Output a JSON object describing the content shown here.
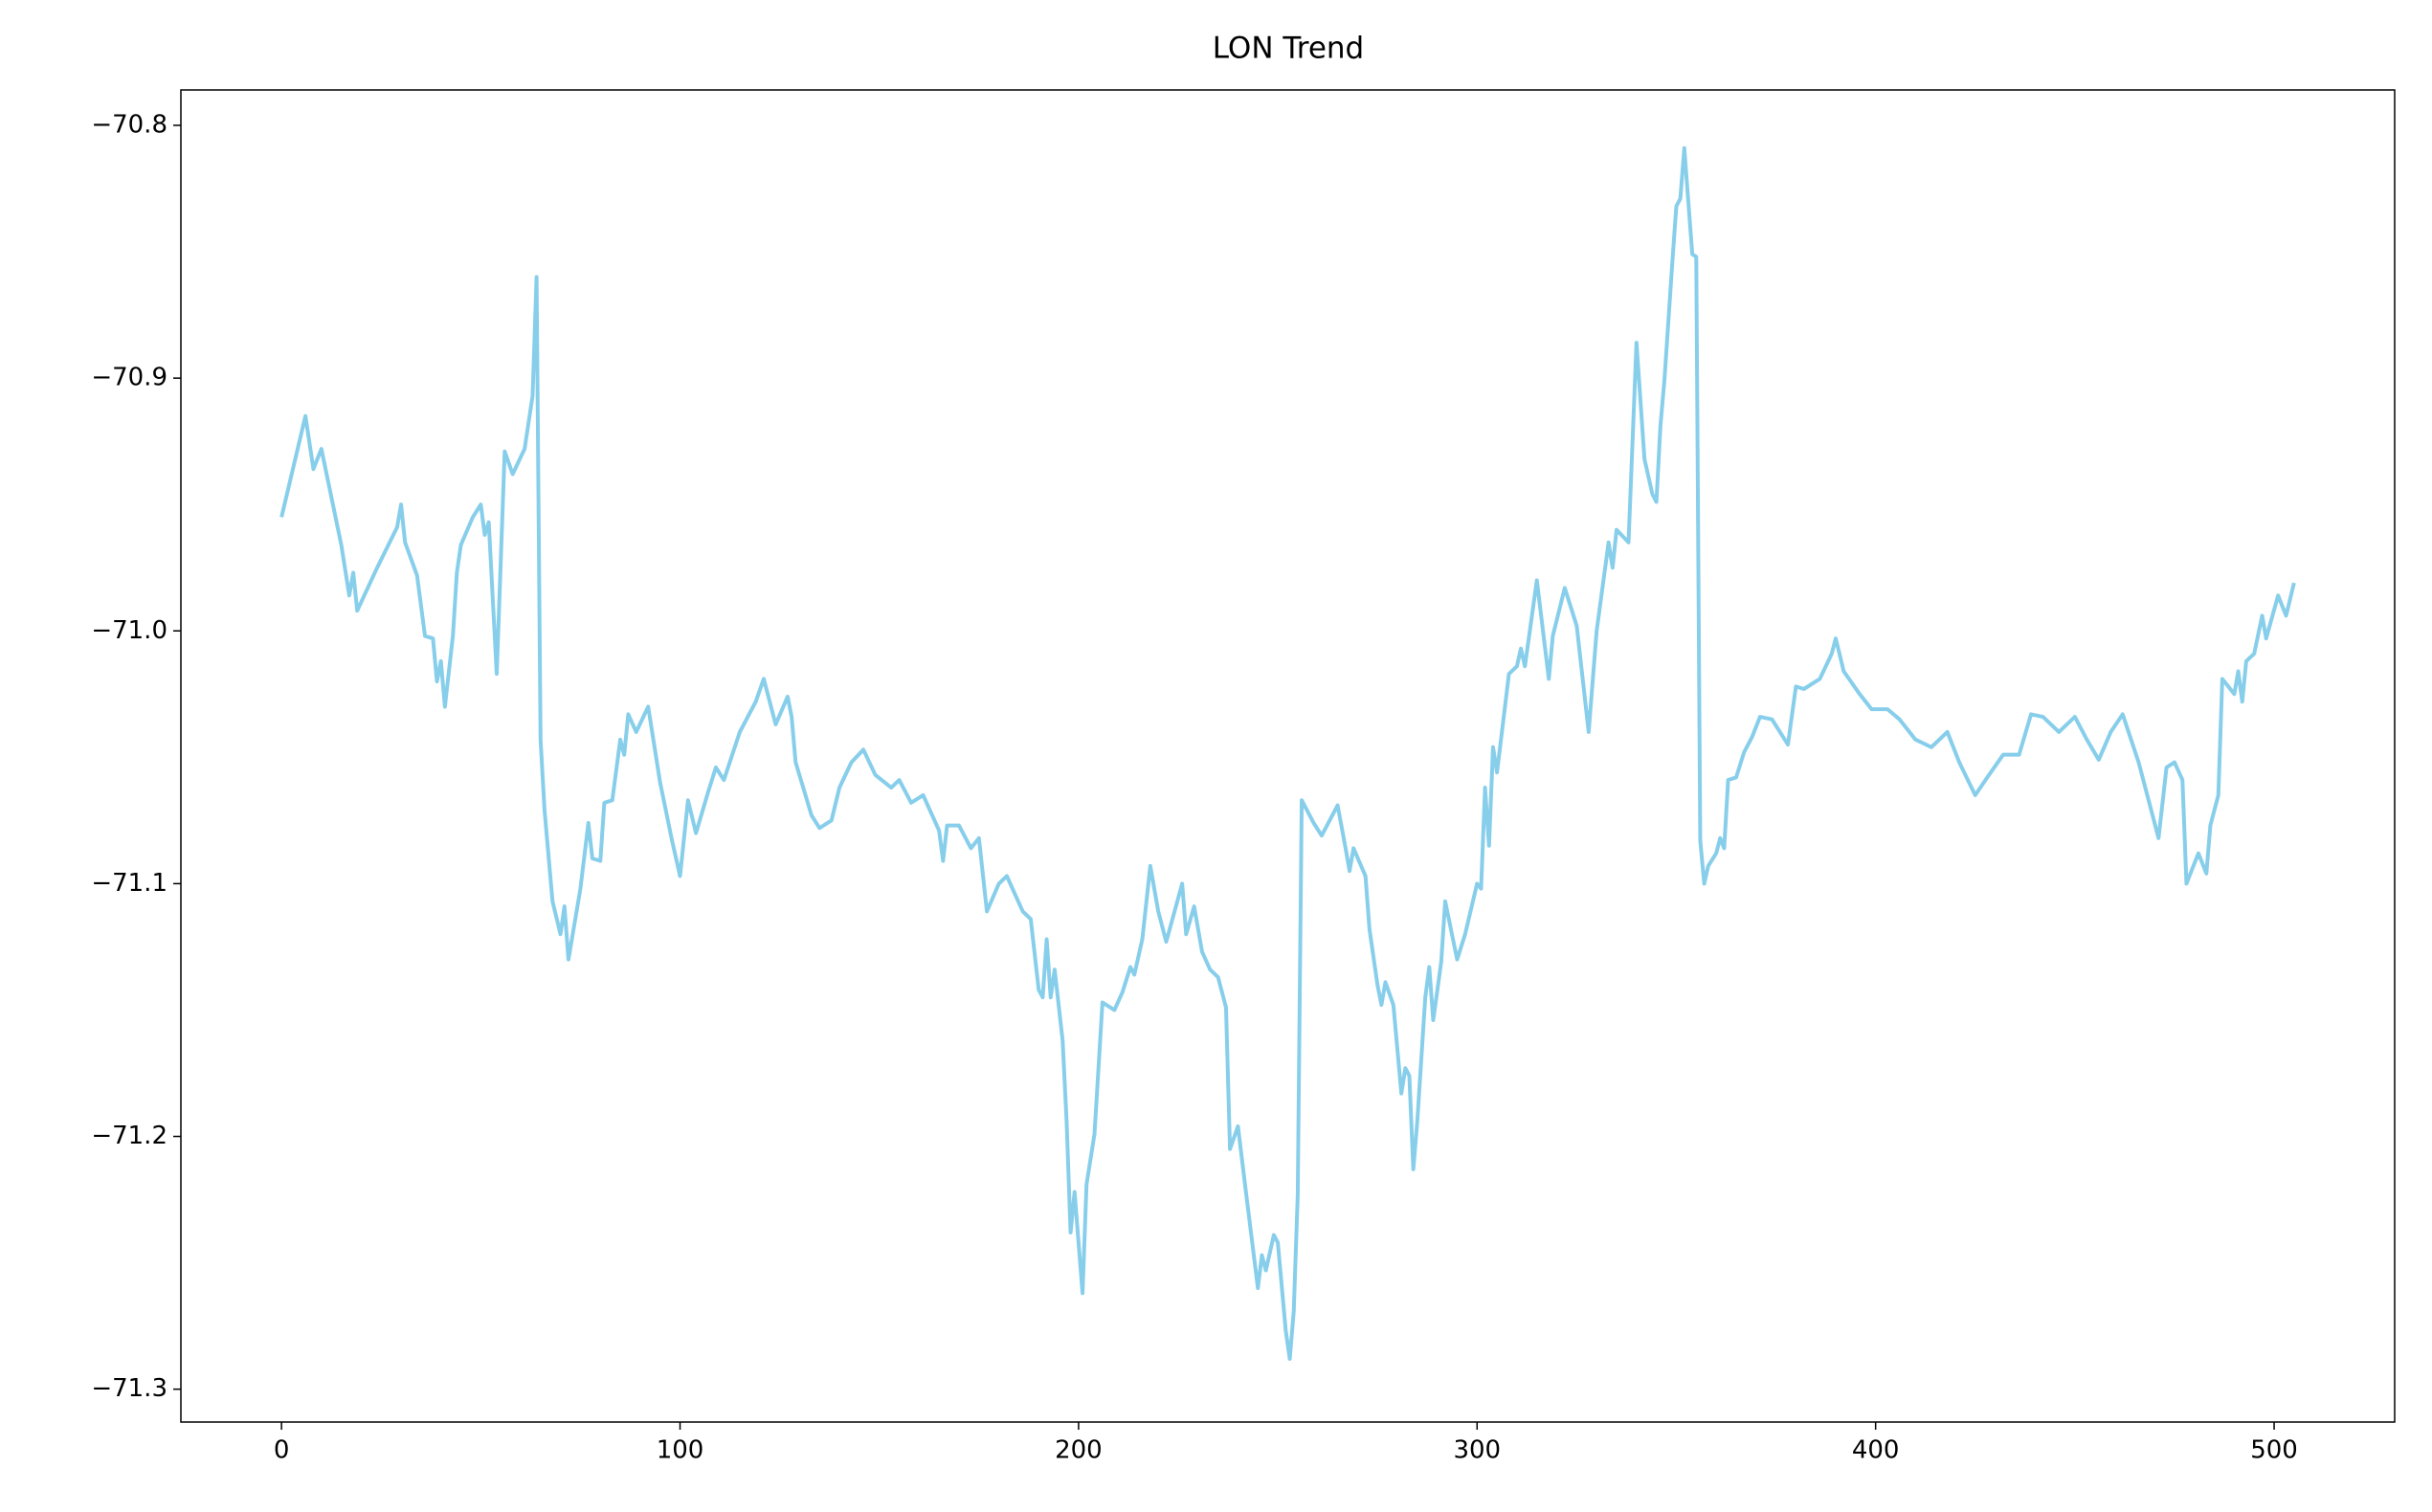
{
  "chart_data": {
    "type": "line",
    "title": "LON Trend",
    "color": "#87ceeb",
    "x": [
      0,
      3,
      6,
      8,
      10,
      15,
      17,
      18,
      19,
      24,
      29,
      30,
      31,
      34,
      36,
      38,
      39,
      40,
      41,
      43,
      44,
      45,
      48,
      50,
      51,
      52,
      54,
      56,
      58,
      61,
      63,
      64,
      65,
      66,
      68,
      70,
      71,
      72,
      75,
      77,
      78,
      80,
      81,
      83,
      85,
      86,
      87,
      89,
      92,
      95,
      98,
      100,
      102,
      104,
      107,
      109,
      111,
      115,
      119,
      121,
      124,
      127,
      128,
      129,
      133,
      135,
      138,
      140,
      143,
      146,
      149,
      153,
      155,
      158,
      161,
      165,
      166,
      167,
      170,
      173,
      175,
      177,
      180,
      182,
      186,
      188,
      190,
      191,
      192,
      193,
      194,
      196,
      197,
      198,
      199,
      201,
      202,
      204,
      206,
      209,
      211,
      213,
      214,
      216,
      218,
      220,
      222,
      226,
      227,
      229,
      231,
      233,
      235,
      237,
      238,
      240,
      242,
      245,
      246,
      247,
      249,
      250,
      252,
      253,
      254,
      255,
      256,
      259,
      261,
      265,
      267,
      268,
      269,
      272,
      273,
      275,
      276,
      277,
      279,
      281,
      282,
      283,
      284,
      285,
      287,
      288,
      289,
      291,
      292,
      295,
      297,
      300,
      301,
      302,
      303,
      304,
      305,
      308,
      310,
      311,
      312,
      315,
      318,
      319,
      322,
      325,
      328,
      330,
      333,
      334,
      335,
      338,
      340,
      342,
      344,
      345,
      346,
      347,
      349,
      350,
      351,
      352,
      353,
      354,
      355,
      356,
      357,
      358,
      360,
      361,
      362,
      363,
      365,
      367,
      369,
      371,
      374,
      376,
      378,
      380,
      382,
      386,
      389,
      390,
      392,
      396,
      399,
      403,
      406,
      410,
      414,
      418,
      421,
      425,
      428,
      432,
      436,
      439,
      442,
      446,
      450,
      453,
      456,
      459,
      462,
      466,
      469,
      471,
      473,
      475,
      477,
      478,
      481,
      483,
      484,
      486,
      487,
      490,
      491,
      492,
      493,
      495,
      497,
      498,
      501,
      503,
      505
    ],
    "values": [
      -70.955,
      -70.935,
      -70.915,
      -70.936,
      -70.928,
      -70.966,
      -70.986,
      -70.977,
      -70.992,
      -70.975,
      -70.959,
      -70.95,
      -70.965,
      -70.978,
      -71.002,
      -71.003,
      -71.02,
      -71.012,
      -71.03,
      -71.002,
      -70.977,
      -70.966,
      -70.955,
      -70.95,
      -70.962,
      -70.957,
      -71.017,
      -70.929,
      -70.938,
      -70.928,
      -70.907,
      -70.86,
      -71.043,
      -71.071,
      -71.107,
      -71.12,
      -71.109,
      -71.13,
      -71.102,
      -71.076,
      -71.09,
      -71.091,
      -71.068,
      -71.067,
      -71.043,
      -71.049,
      -71.033,
      -71.04,
      -71.03,
      -71.06,
      -71.083,
      -71.097,
      -71.067,
      -71.08,
      -71.064,
      -71.054,
      -71.059,
      -71.04,
      -71.028,
      -71.019,
      -71.037,
      -71.026,
      -71.034,
      -71.052,
      -71.073,
      -71.078,
      -71.075,
      -71.062,
      -71.052,
      -71.047,
      -71.057,
      -71.062,
      -71.059,
      -71.068,
      -71.065,
      -71.079,
      -71.091,
      -71.077,
      -71.077,
      -71.086,
      -71.082,
      -71.111,
      -71.1,
      -71.097,
      -71.111,
      -71.114,
      -71.142,
      -71.145,
      -71.122,
      -71.145,
      -71.134,
      -71.162,
      -71.194,
      -71.238,
      -71.222,
      -71.262,
      -71.219,
      -71.199,
      -71.147,
      -71.15,
      -71.143,
      -71.133,
      -71.136,
      -71.122,
      -71.093,
      -71.111,
      -71.123,
      -71.1,
      -71.12,
      -71.109,
      -71.127,
      -71.134,
      -71.137,
      -71.149,
      -71.205,
      -71.196,
      -71.222,
      -71.26,
      -71.247,
      -71.253,
      -71.239,
      -71.242,
      -71.277,
      -71.288,
      -71.269,
      -71.223,
      -71.067,
      -71.076,
      -71.081,
      -71.069,
      -71.086,
      -71.095,
      -71.086,
      -71.097,
      -71.118,
      -71.14,
      -71.148,
      -71.139,
      -71.148,
      -71.183,
      -71.173,
      -71.176,
      -71.213,
      -71.194,
      -71.145,
      -71.133,
      -71.154,
      -71.131,
      -71.107,
      -71.13,
      -71.12,
      -71.1,
      -71.102,
      -71.062,
      -71.085,
      -71.046,
      -71.056,
      -71.017,
      -71.014,
      -71.007,
      -71.014,
      -70.98,
      -71.019,
      -71.002,
      -70.983,
      -70.998,
      -71.04,
      -71.0,
      -70.965,
      -70.975,
      -70.96,
      -70.965,
      -70.886,
      -70.932,
      -70.946,
      -70.949,
      -70.919,
      -70.901,
      -70.854,
      -70.832,
      -70.829,
      -70.809,
      -70.83,
      -70.851,
      -70.852,
      -71.083,
      -71.1,
      -71.093,
      -71.088,
      -71.082,
      -71.086,
      -71.059,
      -71.058,
      -71.048,
      -71.042,
      -71.034,
      -71.035,
      -71.04,
      -71.045,
      -71.022,
      -71.023,
      -71.019,
      -71.009,
      -71.003,
      -71.016,
      -71.025,
      -71.031,
      -71.031,
      -71.035,
      -71.043,
      -71.046,
      -71.04,
      -71.052,
      -71.065,
      -71.058,
      -71.049,
      -71.049,
      -71.033,
      -71.034,
      -71.04,
      -71.034,
      -71.043,
      -71.051,
      -71.04,
      -71.033,
      -71.052,
      -71.07,
      -71.082,
      -71.054,
      -71.052,
      -71.059,
      -71.1,
      -71.088,
      -71.096,
      -71.077,
      -71.065,
      -71.019,
      -71.025,
      -71.016,
      -71.028,
      -71.012,
      -71.009,
      -70.994,
      -71.003,
      -70.986,
      -70.994,
      -70.981
    ],
    "xlim": [
      -25.25,
      530.25
    ],
    "ylim": [
      -71.313,
      -70.786
    ],
    "xticks": [
      0,
      100,
      200,
      300,
      400,
      500
    ],
    "yticks": [
      {
        "value": -71.3,
        "label": "−71.3"
      },
      {
        "value": -71.2,
        "label": "−71.2"
      },
      {
        "value": -71.1,
        "label": "−71.1"
      },
      {
        "value": -71.0,
        "label": "−71.0"
      },
      {
        "value": -70.9,
        "label": "−70.9"
      },
      {
        "value": -70.8,
        "label": "−70.8"
      }
    ],
    "grid": false
  }
}
